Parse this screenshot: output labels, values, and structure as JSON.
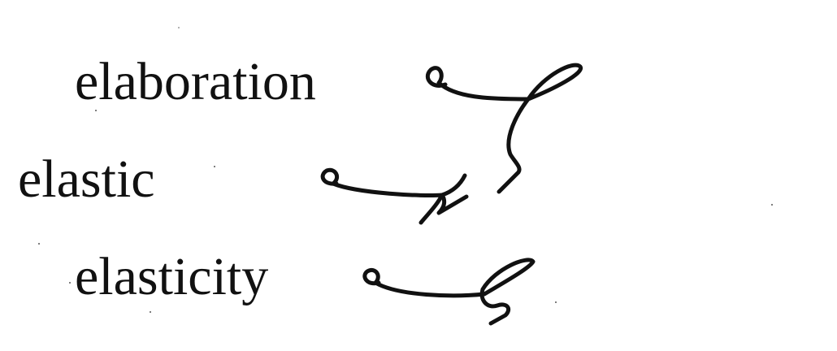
{
  "entries": [
    {
      "word": "elaboration",
      "outline_icon": "shorthand-outline-elaboration-icon"
    },
    {
      "word": "elastic",
      "outline_icon": "shorthand-outline-elastic-icon"
    },
    {
      "word": "elasticity",
      "outline_icon": "shorthand-outline-elasticity-icon"
    }
  ],
  "colors": {
    "ink": "#111111",
    "background": "#ffffff"
  }
}
